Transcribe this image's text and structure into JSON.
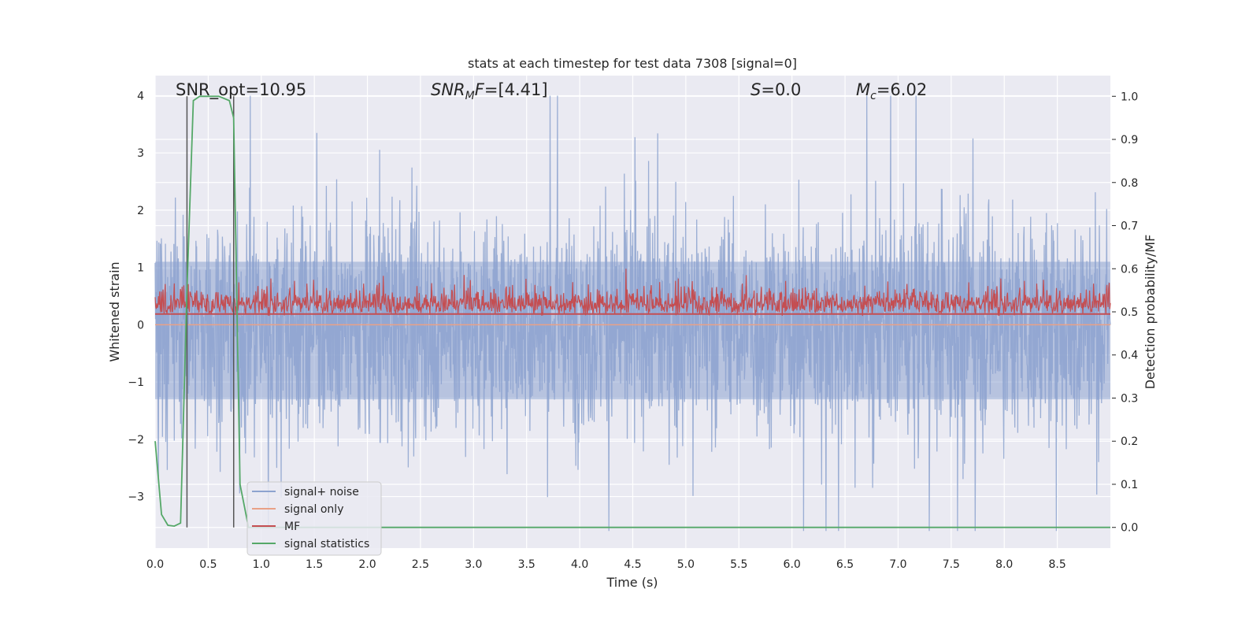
{
  "chart_data": {
    "type": "line",
    "title": "stats at each timestep for test data 7308 [signal=0]",
    "xlabel": "Time (s)",
    "ylabel": "Whitened strain",
    "y2label": "Detection probability/MF",
    "xlim": [
      0,
      9.0
    ],
    "ylim": [
      -3.9,
      4.35
    ],
    "y2lim": [
      -0.048,
      1.048
    ],
    "xticks": [
      "0.0",
      "0.5",
      "1.0",
      "1.5",
      "2.0",
      "2.5",
      "3.0",
      "3.5",
      "4.0",
      "4.5",
      "5.0",
      "5.5",
      "6.0",
      "6.5",
      "7.0",
      "7.5",
      "8.0",
      "8.5"
    ],
    "yticks": [
      "4",
      "3",
      "2",
      "1",
      "0",
      "−1",
      "−2",
      "−3"
    ],
    "y2ticks": [
      "1.0",
      "0.9",
      "0.8",
      "0.7",
      "0.6",
      "0.5",
      "0.4",
      "0.3",
      "0.2",
      "0.1",
      "0.0"
    ],
    "grid": true,
    "legend_position": "lower-left",
    "annotations": {
      "snr_opt": "SNR_opt=10.95",
      "snr_mf": "[4.41]",
      "s": "=0.0",
      "mc": "=6.02"
    },
    "vertical_lines_x": [
      0.3,
      0.74
    ],
    "series": [
      {
        "name": "signal+ noise",
        "axis": "left",
        "color": "#8da3cf",
        "kind": "noise",
        "amplitude_envelope": [
          -3.6,
          4.0
        ]
      },
      {
        "name": "signal only",
        "axis": "left",
        "color": "#e9a187",
        "kind": "flat",
        "values": 0
      },
      {
        "name": "MF",
        "axis": "right",
        "color": "#c44e52",
        "kind": "noise",
        "band": [
          0.49,
          0.6
        ]
      },
      {
        "name": "signal statistics",
        "axis": "right",
        "color": "#55a868",
        "x": [
          0,
          0.06,
          0.12,
          0.18,
          0.24,
          0.3,
          0.36,
          0.42,
          0.5,
          0.6,
          0.7,
          0.74,
          0.8,
          0.88,
          9.0
        ],
        "values": [
          0.2,
          0.03,
          0.005,
          0.003,
          0.01,
          0.55,
          0.99,
          1.0,
          1.0,
          1.0,
          0.99,
          0.95,
          0.1,
          0.0,
          0.0
        ]
      }
    ]
  }
}
